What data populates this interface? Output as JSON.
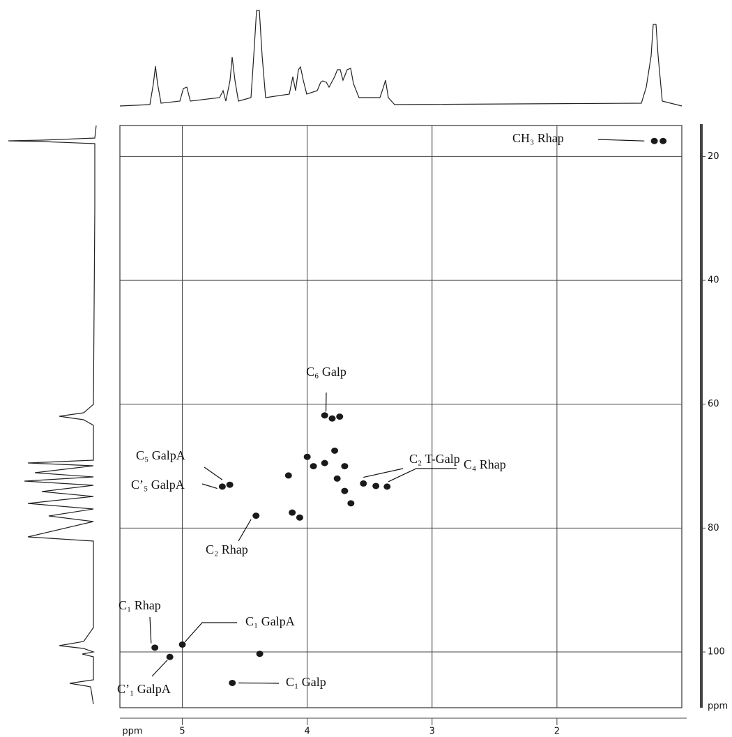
{
  "chart_data": {
    "type": "scatter",
    "xlabel": "ppm",
    "ylabel": "ppm",
    "xlim": [
      5.5,
      1.0
    ],
    "xticks": [
      5,
      4,
      3,
      2
    ],
    "ylim": [
      15,
      109
    ],
    "yticks": [
      20,
      40,
      60,
      80,
      100
    ],
    "grid": true,
    "color": "#1a1a1a",
    "x": [
      1.22,
      1.15,
      3.86,
      3.8,
      3.74,
      4.62,
      4.68,
      4.41,
      4.12,
      4.06,
      4.0,
      3.95,
      4.15,
      3.86,
      3.76,
      3.7,
      3.65,
      3.55,
      3.45,
      3.36,
      5.22,
      5.0,
      5.1,
      4.38,
      4.6,
      3.7,
      3.78
    ],
    "y": [
      17.5,
      17.5,
      61.8,
      62.3,
      62.0,
      73.0,
      73.3,
      78.0,
      77.5,
      78.3,
      68.5,
      70.0,
      71.5,
      69.5,
      72.0,
      74.0,
      76.0,
      72.8,
      73.2,
      73.3,
      99.3,
      98.8,
      100.8,
      100.3,
      105.0,
      70.0,
      67.5
    ],
    "annotations": [
      {
        "text": "CH₃ Rhap",
        "x": 1.3,
        "y": 17.5
      },
      {
        "text": "C₆ Galp",
        "x": 3.85,
        "y": 61.2
      },
      {
        "text": "C₂ T-Galp",
        "x": 3.55,
        "y": 71.8
      },
      {
        "text": "C₄ Rhap",
        "x": 3.35,
        "y": 72.5
      },
      {
        "text": "C₅ GalpA",
        "x": 4.68,
        "y": 72.2
      },
      {
        "text": "C’₅ GalpA",
        "x": 4.72,
        "y": 73.6
      },
      {
        "text": "C₂ Rhap",
        "x": 4.45,
        "y": 78.6
      },
      {
        "text": "C₁ Rhap",
        "x": 5.25,
        "y": 98.6
      },
      {
        "text": "C₁ GalpA",
        "x": 4.98,
        "y": 98.4
      },
      {
        "text": "C’₁ GalpA",
        "x": 5.12,
        "y": 101.3
      },
      {
        "text": "C₁ Galp",
        "x": 4.55,
        "y": 105.0
      }
    ]
  }
}
